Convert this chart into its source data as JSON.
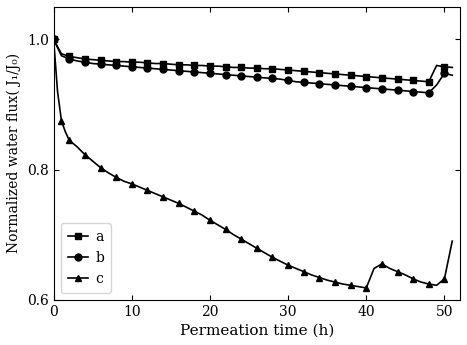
{
  "title": "",
  "xlabel": "Permeation time (h)",
  "ylabel": "Normalized water flux( J₁/J₀)",
  "xlim": [
    0,
    52
  ],
  "ylim": [
    0.6,
    1.05
  ],
  "yticks": [
    0.6,
    0.8,
    1.0
  ],
  "xticks": [
    0,
    10,
    20,
    30,
    40,
    50
  ],
  "series_a_x": [
    0,
    1,
    2,
    3,
    4,
    5,
    6,
    7,
    8,
    9,
    10,
    11,
    12,
    13,
    14,
    15,
    16,
    17,
    18,
    19,
    20,
    21,
    22,
    23,
    24,
    25,
    26,
    27,
    28,
    29,
    30,
    31,
    32,
    33,
    34,
    35,
    36,
    37,
    38,
    39,
    40,
    41,
    42,
    43,
    44,
    45,
    46,
    47,
    48,
    49,
    50,
    51
  ],
  "series_a_y": [
    1.0,
    0.978,
    0.974,
    0.972,
    0.97,
    0.969,
    0.968,
    0.967,
    0.966,
    0.966,
    0.965,
    0.965,
    0.964,
    0.963,
    0.963,
    0.962,
    0.961,
    0.961,
    0.96,
    0.96,
    0.959,
    0.959,
    0.958,
    0.957,
    0.957,
    0.956,
    0.956,
    0.955,
    0.955,
    0.954,
    0.953,
    0.952,
    0.951,
    0.95,
    0.949,
    0.948,
    0.947,
    0.946,
    0.945,
    0.944,
    0.943,
    0.942,
    0.941,
    0.94,
    0.939,
    0.938,
    0.937,
    0.936,
    0.935,
    0.96,
    0.958,
    0.957
  ],
  "series_b_x": [
    0,
    1,
    2,
    3,
    4,
    5,
    6,
    7,
    8,
    9,
    10,
    11,
    12,
    13,
    14,
    15,
    16,
    17,
    18,
    19,
    20,
    21,
    22,
    23,
    24,
    25,
    26,
    27,
    28,
    29,
    30,
    31,
    32,
    33,
    34,
    35,
    36,
    37,
    38,
    39,
    40,
    41,
    42,
    43,
    44,
    45,
    46,
    47,
    48,
    49,
    50,
    51
  ],
  "series_b_y": [
    1.0,
    0.975,
    0.97,
    0.967,
    0.965,
    0.963,
    0.962,
    0.961,
    0.96,
    0.959,
    0.958,
    0.957,
    0.956,
    0.955,
    0.954,
    0.953,
    0.952,
    0.951,
    0.95,
    0.949,
    0.948,
    0.947,
    0.946,
    0.945,
    0.944,
    0.943,
    0.942,
    0.941,
    0.94,
    0.939,
    0.937,
    0.935,
    0.934,
    0.933,
    0.932,
    0.931,
    0.93,
    0.929,
    0.928,
    0.927,
    0.926,
    0.925,
    0.924,
    0.923,
    0.922,
    0.921,
    0.92,
    0.919,
    0.918,
    0.93,
    0.948,
    0.945
  ],
  "series_c_x": [
    0,
    0.5,
    1,
    1.5,
    2,
    3,
    4,
    5,
    6,
    7,
    8,
    9,
    10,
    11,
    12,
    13,
    14,
    15,
    16,
    17,
    18,
    19,
    20,
    21,
    22,
    23,
    24,
    25,
    26,
    27,
    28,
    29,
    30,
    31,
    32,
    33,
    34,
    35,
    36,
    37,
    38,
    39,
    40,
    41,
    42,
    43,
    44,
    45,
    46,
    47,
    48,
    49,
    50,
    51
  ],
  "series_c_y": [
    1.0,
    0.92,
    0.875,
    0.858,
    0.845,
    0.835,
    0.823,
    0.813,
    0.803,
    0.795,
    0.788,
    0.782,
    0.778,
    0.773,
    0.768,
    0.763,
    0.758,
    0.753,
    0.748,
    0.742,
    0.736,
    0.73,
    0.722,
    0.715,
    0.708,
    0.7,
    0.693,
    0.686,
    0.679,
    0.672,
    0.665,
    0.659,
    0.653,
    0.648,
    0.643,
    0.638,
    0.634,
    0.63,
    0.627,
    0.624,
    0.622,
    0.62,
    0.618,
    0.648,
    0.655,
    0.648,
    0.643,
    0.638,
    0.632,
    0.627,
    0.624,
    0.622,
    0.632,
    0.69
  ],
  "marker_a": "s",
  "marker_b": "o",
  "marker_c": "^",
  "color": "#000000",
  "legend_labels": [
    "a",
    "b",
    "c"
  ],
  "legend_loc": "lower left",
  "markersize": 5,
  "linewidth": 1.2
}
